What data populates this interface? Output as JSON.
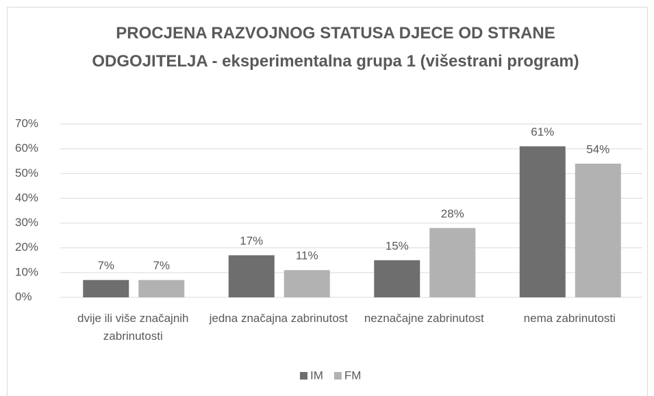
{
  "chart_data": {
    "type": "bar",
    "title": "PROCJENA RAZVOJNOG STATUSA DJECE OD STRANE ODGOJITELJA - eksperimentalna grupa 1 (višestrani program)",
    "categories": [
      "dvije ili više značajnih zabrinutosti",
      "jedna značajna zabrinutost",
      "neznačajne zabrinutost",
      "nema zabrinutosti"
    ],
    "series": [
      {
        "name": "IM",
        "color": "#6e6e6e",
        "values": [
          7,
          17,
          15,
          61
        ],
        "value_labels": [
          "7%",
          "17%",
          "15%",
          "61%"
        ]
      },
      {
        "name": "FM",
        "color": "#b2b2b2",
        "values": [
          7,
          11,
          28,
          54
        ],
        "value_labels": [
          "7%",
          "11%",
          "28%",
          "54%"
        ]
      }
    ],
    "ylim": [
      0,
      70
    ],
    "yticks": [
      {
        "value": 0,
        "label": "0%"
      },
      {
        "value": 10,
        "label": "10%"
      },
      {
        "value": 20,
        "label": "20%"
      },
      {
        "value": 30,
        "label": "30%"
      },
      {
        "value": 40,
        "label": "40%"
      },
      {
        "value": 50,
        "label": "50%"
      },
      {
        "value": 60,
        "label": "60%"
      },
      {
        "value": 70,
        "label": "70%"
      }
    ],
    "grid": true,
    "legend": "bottom"
  }
}
